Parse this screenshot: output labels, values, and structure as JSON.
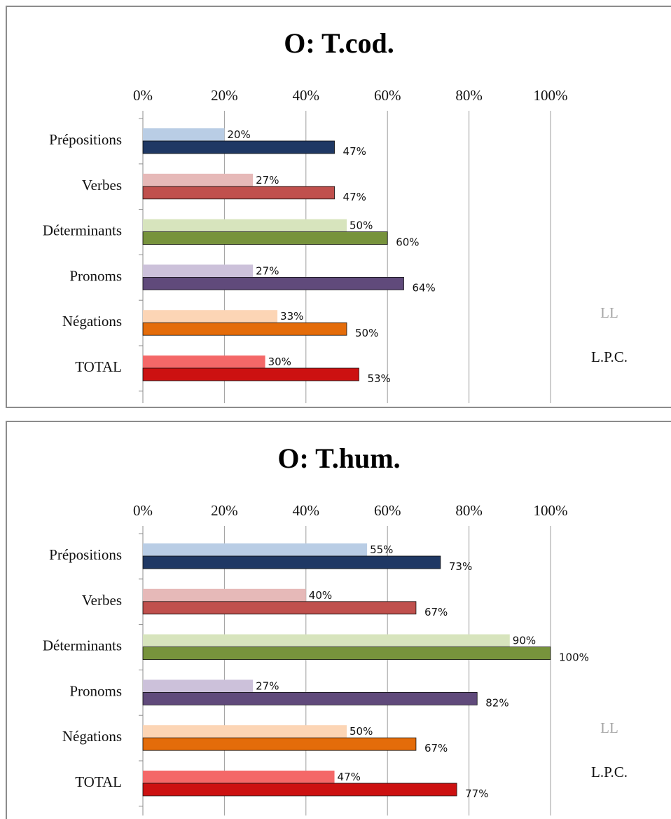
{
  "chart_data": [
    {
      "type": "bar",
      "orientation": "horizontal",
      "title": "O: T.cod.",
      "categories": [
        "Prépositions",
        "Verbes",
        "Déterminants",
        "Pronoms",
        "Négations",
        "TOTAL"
      ],
      "series": [
        {
          "name": "LL",
          "values": [
            20,
            27,
            50,
            27,
            33,
            30
          ],
          "labels": [
            "20%",
            "27%",
            "50%",
            "27%",
            "33%",
            "30%"
          ]
        },
        {
          "name": "L.P.C.",
          "values": [
            47,
            47,
            60,
            64,
            50,
            53
          ],
          "labels": [
            "47%",
            "47%",
            "60%",
            "64%",
            "50%",
            "53%"
          ]
        }
      ],
      "colors_ll": [
        "#b9cde5",
        "#e6b9b8",
        "#d7e4bd",
        "#ccc1da",
        "#fcd5b5",
        "#f46868"
      ],
      "colors_lpc": [
        "#1f3864",
        "#c0504d",
        "#77933c",
        "#604a7b",
        "#e46c0a",
        "#cc1111"
      ],
      "xlim": [
        0,
        100
      ],
      "xticks": [
        "0%",
        "20%",
        "40%",
        "60%",
        "80%",
        "100%"
      ],
      "xaxis_position": "top",
      "grid": true,
      "legend_position": "right",
      "legend_colors": [
        "#a6a6a6",
        "#111111"
      ]
    },
    {
      "type": "bar",
      "orientation": "horizontal",
      "title": "O: T.hum.",
      "categories": [
        "Prépositions",
        "Verbes",
        "Déterminants",
        "Pronoms",
        "Négations",
        "TOTAL"
      ],
      "series": [
        {
          "name": "LL",
          "values": [
            55,
            40,
            90,
            27,
            50,
            47
          ],
          "labels": [
            "55%",
            "40%",
            "90%",
            "27%",
            "50%",
            "47%"
          ]
        },
        {
          "name": "L.P.C.",
          "values": [
            73,
            67,
            100,
            82,
            67,
            77
          ],
          "labels": [
            "73%",
            "67%",
            "100%",
            "82%",
            "67%",
            "77%"
          ]
        }
      ],
      "colors_ll": [
        "#b9cde5",
        "#e6b9b8",
        "#d7e4bd",
        "#ccc1da",
        "#fcd5b5",
        "#f46868"
      ],
      "colors_lpc": [
        "#1f3864",
        "#c0504d",
        "#77933c",
        "#604a7b",
        "#e46c0a",
        "#cc1111"
      ],
      "xlim": [
        0,
        100
      ],
      "xticks": [
        "0%",
        "20%",
        "40%",
        "60%",
        "80%",
        "100%"
      ],
      "xaxis_position": "top",
      "grid": true,
      "legend_position": "right",
      "legend_colors": [
        "#a6a6a6",
        "#111111"
      ]
    }
  ]
}
